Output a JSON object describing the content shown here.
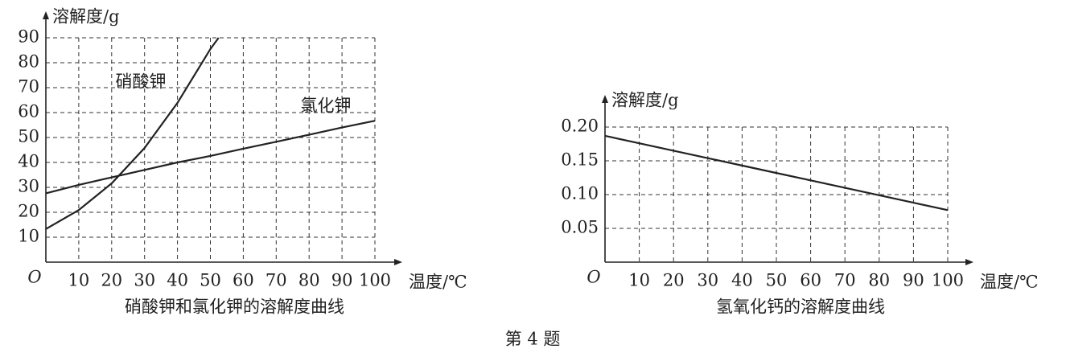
{
  "chart_data": [
    {
      "type": "line",
      "title": "硝酸钾和氯化钾的溶解度曲线",
      "y_label": "溶解度/g",
      "x_label": "温度/℃",
      "origin_label": "O",
      "x": [
        0,
        10,
        20,
        30,
        40,
        50,
        60,
        70,
        80,
        90,
        100
      ],
      "series": [
        {
          "name": "硝酸钾",
          "color": "#222222",
          "x": [
            0,
            10,
            20,
            30,
            40,
            50,
            52.5
          ],
          "values": [
            13.3,
            20.9,
            31.6,
            45.8,
            63.9,
            85.5,
            90
          ]
        },
        {
          "name": "氯化钾",
          "color": "#222222",
          "values": [
            27.6,
            31,
            34,
            37,
            40,
            42.6,
            45.5,
            48.3,
            51.1,
            54,
            56.7
          ]
        }
      ],
      "xlim": [
        0,
        100
      ],
      "xticks": [
        10,
        20,
        30,
        40,
        50,
        60,
        70,
        80,
        90,
        100
      ],
      "ylim": [
        0,
        90
      ],
      "yticks": [
        10,
        20,
        30,
        40,
        50,
        60,
        70,
        80,
        90
      ],
      "grid": true
    },
    {
      "type": "line",
      "title": "氢氧化钙的溶解度曲线",
      "y_label": "溶解度/g",
      "x_label": "温度/℃",
      "origin_label": "O",
      "x": [
        0,
        10,
        20,
        30,
        40,
        50,
        60,
        70,
        80,
        90,
        100
      ],
      "series": [
        {
          "color": "#222222",
          "values": [
            0.187,
            0.176,
            0.165,
            0.154,
            0.143,
            0.132,
            0.121,
            0.11,
            0.099,
            0.088,
            0.077
          ]
        }
      ],
      "xlim": [
        0,
        100
      ],
      "xticks": [
        10,
        20,
        30,
        40,
        50,
        60,
        70,
        80,
        90,
        100
      ],
      "ylim": [
        0,
        0.2
      ],
      "yticks": [
        {
          "value": 0.05,
          "label": "0.05"
        },
        {
          "value": 0.1,
          "label": "0.10"
        },
        {
          "value": 0.15,
          "label": "0.15"
        },
        {
          "value": 0.2,
          "label": "0.20"
        }
      ],
      "grid": true
    }
  ],
  "caption": "第 4 题"
}
